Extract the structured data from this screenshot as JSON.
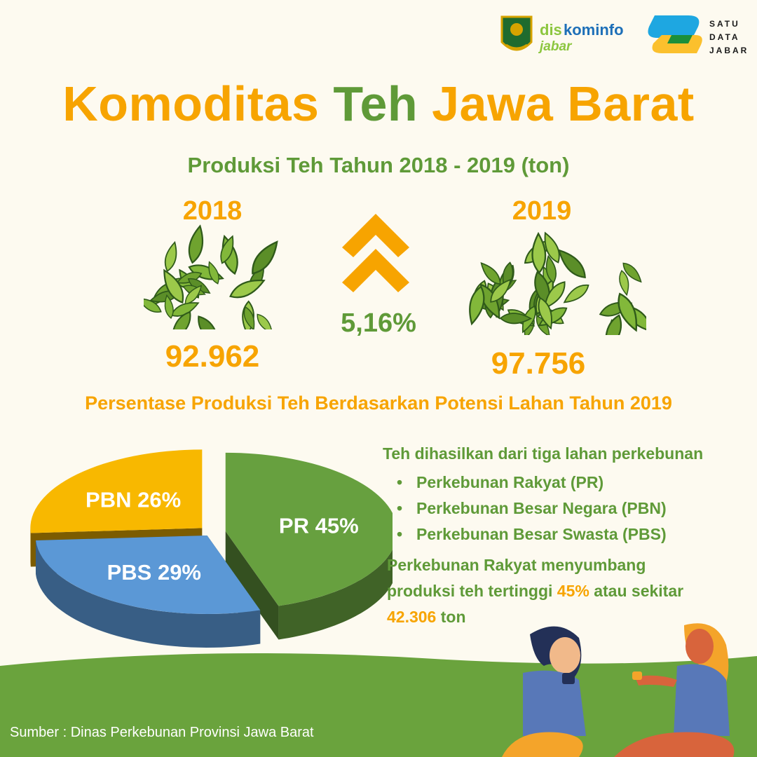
{
  "logos": {
    "diskominfo_line1a": "dis",
    "diskominfo_line1b": "kominfo",
    "diskominfo_line2": "jabar",
    "satudata_lines": [
      "SATU",
      "DATA",
      "JABAR"
    ]
  },
  "title": {
    "part1": "Komoditas ",
    "part2": "Teh",
    "part3": " Jawa Barat"
  },
  "subtitle": "Produksi Teh Tahun 2018 - 2019 (ton)",
  "production": {
    "year_2018": "2018",
    "value_2018": "92.962",
    "year_2019": "2019",
    "value_2019": "97.756",
    "growth": "5,16%"
  },
  "section_title": "Persentase Produksi Teh Berdasarkan Potensi Lahan Tahun 2019",
  "legend": {
    "intro": "Teh dihasilkan dari tiga lahan perkebunan",
    "items": [
      "Perkebunan Rakyat (PR)",
      "Perkebunan Besar Negara (PBN)",
      "Perkebunan Besar Swasta (PBS)"
    ]
  },
  "note": {
    "part1": "Perkebunan Rakyat menyumbang produksi teh tertinggi ",
    "highlight1": "45%",
    "part2": " atau sekitar ",
    "highlight2": "42.306",
    "part3": " ton"
  },
  "source": "Sumber : Dinas Perkebunan Provinsi Jawa Barat",
  "colors": {
    "orange": "#f7a400",
    "green": "#5f9a38",
    "blue": "#5b98d6",
    "yellow": "#f8b800"
  },
  "chart_data": {
    "type": "pie",
    "categories": [
      "PR",
      "PBS",
      "PBN"
    ],
    "values": [
      45,
      29,
      26
    ],
    "labels": [
      "PR 45%",
      "PBS 29%",
      "PBN 26%"
    ],
    "colors": [
      "#67a03f",
      "#5b98d6",
      "#f8b800"
    ]
  }
}
